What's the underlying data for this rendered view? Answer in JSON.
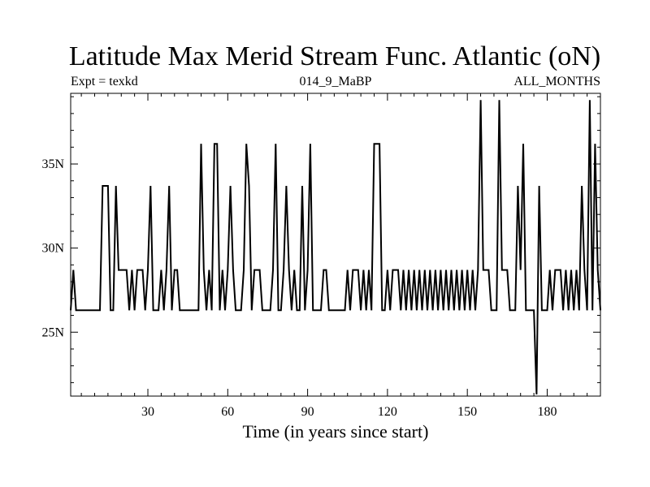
{
  "chart_data": {
    "type": "line",
    "title": "Latitude Max Merid Stream Func. Atlantic (oN)",
    "subtitle_left": "Expt = texkd",
    "subtitle_center": "014_9_MaBP",
    "subtitle_right": "ALL_MONTHS",
    "xlabel": "Time (in years since start)",
    "ylabel": "",
    "xlim": [
      1,
      200
    ],
    "ylim": [
      21.2,
      39.2
    ],
    "x_ticks": [
      30,
      60,
      90,
      120,
      150,
      180
    ],
    "x_tick_labels": [
      "30",
      "60",
      "90",
      "120",
      "150",
      "180"
    ],
    "y_ticks": [
      25,
      30,
      35
    ],
    "y_tick_labels": [
      "25N",
      "30N",
      "35N"
    ],
    "grid": false,
    "legend": "none",
    "line_color": "#000000",
    "series": [
      {
        "values": [
          {
            "x": 1,
            "y": 26.3
          },
          {
            "x": 2,
            "y": 28.7
          },
          {
            "x": 3,
            "y": 26.3
          },
          {
            "x": 12,
            "y": 26.3
          },
          {
            "x": 13,
            "y": 33.7
          },
          {
            "x": 15,
            "y": 33.7
          },
          {
            "x": 16,
            "y": 26.3
          },
          {
            "x": 17,
            "y": 26.3
          },
          {
            "x": 18,
            "y": 33.7
          },
          {
            "x": 19,
            "y": 28.7
          },
          {
            "x": 22,
            "y": 28.7
          },
          {
            "x": 23,
            "y": 26.3
          },
          {
            "x": 24,
            "y": 28.7
          },
          {
            "x": 25,
            "y": 26.3
          },
          {
            "x": 26,
            "y": 28.7
          },
          {
            "x": 28,
            "y": 28.7
          },
          {
            "x": 29,
            "y": 26.3
          },
          {
            "x": 30,
            "y": 28.7
          },
          {
            "x": 31,
            "y": 33.7
          },
          {
            "x": 32,
            "y": 26.3
          },
          {
            "x": 34,
            "y": 26.3
          },
          {
            "x": 35,
            "y": 28.7
          },
          {
            "x": 36,
            "y": 26.3
          },
          {
            "x": 37,
            "y": 28.7
          },
          {
            "x": 38,
            "y": 33.7
          },
          {
            "x": 39,
            "y": 26.3
          },
          {
            "x": 40,
            "y": 28.7
          },
          {
            "x": 41,
            "y": 28.7
          },
          {
            "x": 42,
            "y": 26.3
          },
          {
            "x": 49,
            "y": 26.3
          },
          {
            "x": 50,
            "y": 36.2
          },
          {
            "x": 51,
            "y": 28.7
          },
          {
            "x": 52,
            "y": 26.3
          },
          {
            "x": 53,
            "y": 28.7
          },
          {
            "x": 54,
            "y": 26.3
          },
          {
            "x": 55,
            "y": 36.2
          },
          {
            "x": 56,
            "y": 36.2
          },
          {
            "x": 57,
            "y": 26.3
          },
          {
            "x": 58,
            "y": 28.7
          },
          {
            "x": 59,
            "y": 26.3
          },
          {
            "x": 60,
            "y": 28.7
          },
          {
            "x": 61,
            "y": 33.7
          },
          {
            "x": 62,
            "y": 28.7
          },
          {
            "x": 63,
            "y": 26.3
          },
          {
            "x": 65,
            "y": 26.3
          },
          {
            "x": 66,
            "y": 28.7
          },
          {
            "x": 67,
            "y": 36.2
          },
          {
            "x": 68,
            "y": 33.7
          },
          {
            "x": 69,
            "y": 26.3
          },
          {
            "x": 70,
            "y": 28.7
          },
          {
            "x": 72,
            "y": 28.7
          },
          {
            "x": 73,
            "y": 26.3
          },
          {
            "x": 76,
            "y": 26.3
          },
          {
            "x": 77,
            "y": 28.7
          },
          {
            "x": 78,
            "y": 36.2
          },
          {
            "x": 79,
            "y": 26.3
          },
          {
            "x": 80,
            "y": 26.3
          },
          {
            "x": 81,
            "y": 28.7
          },
          {
            "x": 82,
            "y": 33.7
          },
          {
            "x": 83,
            "y": 28.7
          },
          {
            "x": 84,
            "y": 26.3
          },
          {
            "x": 85,
            "y": 28.7
          },
          {
            "x": 86,
            "y": 26.3
          },
          {
            "x": 87,
            "y": 26.3
          },
          {
            "x": 88,
            "y": 33.7
          },
          {
            "x": 89,
            "y": 26.3
          },
          {
            "x": 90,
            "y": 28.7
          },
          {
            "x": 91,
            "y": 36.2
          },
          {
            "x": 92,
            "y": 26.3
          },
          {
            "x": 95,
            "y": 26.3
          },
          {
            "x": 96,
            "y": 28.7
          },
          {
            "x": 97,
            "y": 28.7
          },
          {
            "x": 98,
            "y": 26.3
          },
          {
            "x": 104,
            "y": 26.3
          },
          {
            "x": 105,
            "y": 28.7
          },
          {
            "x": 106,
            "y": 26.3
          },
          {
            "x": 107,
            "y": 28.7
          },
          {
            "x": 109,
            "y": 28.7
          },
          {
            "x": 110,
            "y": 26.3
          },
          {
            "x": 111,
            "y": 28.7
          },
          {
            "x": 112,
            "y": 26.3
          },
          {
            "x": 113,
            "y": 28.7
          },
          {
            "x": 114,
            "y": 26.3
          },
          {
            "x": 115,
            "y": 36.2
          },
          {
            "x": 117,
            "y": 36.2
          },
          {
            "x": 118,
            "y": 26.3
          },
          {
            "x": 119,
            "y": 26.3
          },
          {
            "x": 120,
            "y": 28.7
          },
          {
            "x": 121,
            "y": 26.3
          },
          {
            "x": 122,
            "y": 28.7
          },
          {
            "x": 124,
            "y": 28.7
          },
          {
            "x": 125,
            "y": 26.3
          },
          {
            "x": 126,
            "y": 28.7
          },
          {
            "x": 127,
            "y": 26.3
          },
          {
            "x": 128,
            "y": 28.7
          },
          {
            "x": 129,
            "y": 26.3
          },
          {
            "x": 130,
            "y": 28.7
          },
          {
            "x": 131,
            "y": 26.3
          },
          {
            "x": 132,
            "y": 28.7
          },
          {
            "x": 133,
            "y": 26.3
          },
          {
            "x": 134,
            "y": 28.7
          },
          {
            "x": 135,
            "y": 26.3
          },
          {
            "x": 136,
            "y": 28.7
          },
          {
            "x": 137,
            "y": 26.3
          },
          {
            "x": 138,
            "y": 28.7
          },
          {
            "x": 139,
            "y": 26.3
          },
          {
            "x": 140,
            "y": 28.7
          },
          {
            "x": 141,
            "y": 26.3
          },
          {
            "x": 142,
            "y": 28.7
          },
          {
            "x": 143,
            "y": 26.3
          },
          {
            "x": 144,
            "y": 28.7
          },
          {
            "x": 145,
            "y": 26.3
          },
          {
            "x": 146,
            "y": 28.7
          },
          {
            "x": 147,
            "y": 26.3
          },
          {
            "x": 148,
            "y": 28.7
          },
          {
            "x": 149,
            "y": 26.3
          },
          {
            "x": 150,
            "y": 28.7
          },
          {
            "x": 151,
            "y": 26.3
          },
          {
            "x": 152,
            "y": 28.7
          },
          {
            "x": 153,
            "y": 26.3
          },
          {
            "x": 154,
            "y": 28.7
          },
          {
            "x": 155,
            "y": 38.8
          },
          {
            "x": 156,
            "y": 28.7
          },
          {
            "x": 158,
            "y": 28.7
          },
          {
            "x": 159,
            "y": 26.3
          },
          {
            "x": 161,
            "y": 26.3
          },
          {
            "x": 162,
            "y": 38.8
          },
          {
            "x": 163,
            "y": 28.7
          },
          {
            "x": 165,
            "y": 28.7
          },
          {
            "x": 166,
            "y": 26.3
          },
          {
            "x": 168,
            "y": 26.3
          },
          {
            "x": 169,
            "y": 33.7
          },
          {
            "x": 170,
            "y": 28.7
          },
          {
            "x": 171,
            "y": 36.2
          },
          {
            "x": 172,
            "y": 26.3
          },
          {
            "x": 175,
            "y": 26.3
          },
          {
            "x": 176,
            "y": 21.3
          },
          {
            "x": 177,
            "y": 33.7
          },
          {
            "x": 178,
            "y": 26.3
          },
          {
            "x": 180,
            "y": 26.3
          },
          {
            "x": 181,
            "y": 28.7
          },
          {
            "x": 182,
            "y": 26.3
          },
          {
            "x": 183,
            "y": 28.7
          },
          {
            "x": 185,
            "y": 28.7
          },
          {
            "x": 186,
            "y": 26.3
          },
          {
            "x": 187,
            "y": 28.7
          },
          {
            "x": 188,
            "y": 26.3
          },
          {
            "x": 189,
            "y": 28.7
          },
          {
            "x": 190,
            "y": 26.3
          },
          {
            "x": 191,
            "y": 28.7
          },
          {
            "x": 192,
            "y": 26.3
          },
          {
            "x": 193,
            "y": 33.7
          },
          {
            "x": 194,
            "y": 28.7
          },
          {
            "x": 195,
            "y": 26.3
          },
          {
            "x": 196,
            "y": 38.8
          },
          {
            "x": 197,
            "y": 26.3
          },
          {
            "x": 198,
            "y": 36.2
          },
          {
            "x": 199,
            "y": 28.7
          },
          {
            "x": 200,
            "y": 26.3
          }
        ]
      }
    ]
  }
}
